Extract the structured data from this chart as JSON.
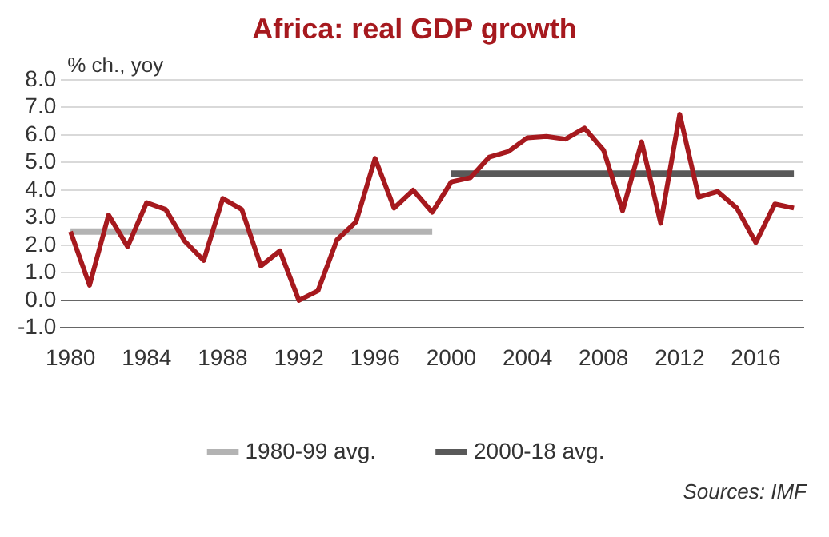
{
  "chart_data": {
    "type": "line",
    "title": "Africa: real GDP growth",
    "ylabel": "% ch., yoy",
    "x": [
      1980,
      1981,
      1982,
      1983,
      1984,
      1985,
      1986,
      1987,
      1988,
      1989,
      1990,
      1991,
      1992,
      1993,
      1994,
      1995,
      1996,
      1997,
      1998,
      1999,
      2000,
      2001,
      2002,
      2003,
      2004,
      2005,
      2006,
      2007,
      2008,
      2009,
      2010,
      2011,
      2012,
      2013,
      2014,
      2015,
      2016,
      2017,
      2018
    ],
    "series": [
      {
        "color": "#a6191e",
        "values": [
          2.5,
          0.55,
          3.1,
          1.95,
          3.55,
          3.3,
          2.15,
          1.45,
          3.7,
          3.3,
          1.25,
          1.8,
          0.0,
          0.35,
          2.2,
          2.85,
          5.15,
          3.35,
          4.0,
          3.2,
          4.3,
          4.45,
          5.2,
          5.4,
          5.9,
          5.95,
          5.85,
          6.25,
          5.45,
          3.25,
          5.75,
          2.8,
          6.75,
          3.75,
          3.95,
          3.35,
          2.1,
          3.5,
          3.35
        ]
      },
      {
        "name": "1980-99 avg.",
        "color": "#b3b3b3",
        "x": [
          1980,
          1999
        ],
        "values": [
          2.5,
          2.5
        ]
      },
      {
        "name": "2000-18 avg.",
        "color": "#595959",
        "x": [
          2000,
          2018
        ],
        "values": [
          4.6,
          4.6
        ]
      }
    ],
    "xlim": [
      1979.5,
      2018.5
    ],
    "xticks": [
      1980,
      1984,
      1988,
      1992,
      1996,
      2000,
      2004,
      2008,
      2012,
      2016
    ],
    "ylim": [
      -1,
      8
    ],
    "yticks": [
      {
        "value": -1,
        "label": "-1.0"
      },
      {
        "value": 0,
        "label": "0.0"
      },
      {
        "value": 1,
        "label": "1.0"
      },
      {
        "value": 2,
        "label": "2.0"
      },
      {
        "value": 3,
        "label": "3.0"
      },
      {
        "value": 4,
        "label": "4.0"
      },
      {
        "value": 5,
        "label": "5.0"
      },
      {
        "value": 6,
        "label": "6.0"
      },
      {
        "value": 7,
        "label": "7.0"
      },
      {
        "value": 8,
        "label": "8.0"
      }
    ],
    "grid": "y",
    "legend": "bottom",
    "marker": "none",
    "line_style": "solid",
    "annotations": [
      "Sources: IMF"
    ]
  }
}
